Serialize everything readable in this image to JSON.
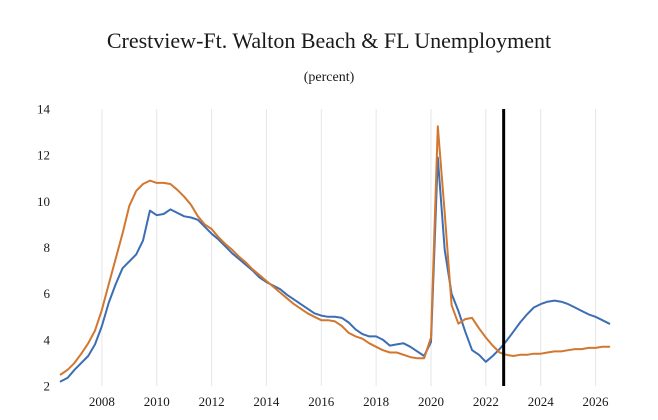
{
  "chart_data": {
    "type": "line",
    "title": "Crestview-Ft. Walton Beach & FL Unemployment",
    "subtitle": "(percent)",
    "xlabel": "",
    "ylabel": "",
    "xlim": [
      2006.4,
      2026.6
    ],
    "ylim": [
      2,
      14
    ],
    "y_ticks": [
      2,
      4,
      6,
      8,
      10,
      12,
      14
    ],
    "x_ticks": [
      2008,
      2010,
      2012,
      2014,
      2016,
      2018,
      2020,
      2022,
      2024,
      2026
    ],
    "grid": "vertical",
    "forecast_marker_x": 2022.65,
    "series": [
      {
        "name": "Crestview-Ft. Walton Beach",
        "color": "#3b6eb4",
        "x": [
          2006.5,
          2006.75,
          2007.0,
          2007.25,
          2007.5,
          2007.75,
          2008.0,
          2008.25,
          2008.5,
          2008.75,
          2009.0,
          2009.25,
          2009.5,
          2009.75,
          2010.0,
          2010.25,
          2010.5,
          2010.75,
          2011.0,
          2011.25,
          2011.5,
          2011.75,
          2012.0,
          2012.25,
          2012.5,
          2012.75,
          2013.0,
          2013.25,
          2013.5,
          2013.75,
          2014.0,
          2014.25,
          2014.5,
          2014.75,
          2015.0,
          2015.25,
          2015.5,
          2015.75,
          2016.0,
          2016.25,
          2016.5,
          2016.75,
          2017.0,
          2017.25,
          2017.5,
          2017.75,
          2018.0,
          2018.25,
          2018.5,
          2018.75,
          2019.0,
          2019.25,
          2019.5,
          2019.75,
          2020.0,
          2020.25,
          2020.5,
          2020.75,
          2021.0,
          2021.25,
          2021.5,
          2021.75,
          2022.0,
          2022.25,
          2022.5,
          2022.75,
          2023.0,
          2023.25,
          2023.5,
          2023.75,
          2024.0,
          2024.25,
          2024.5,
          2024.75,
          2025.0,
          2025.25,
          2025.5,
          2025.75,
          2026.0,
          2026.25,
          2026.5
        ],
        "values": [
          2.2,
          2.35,
          2.7,
          3.0,
          3.3,
          3.8,
          4.6,
          5.6,
          6.4,
          7.1,
          7.4,
          7.7,
          8.3,
          9.6,
          9.4,
          9.45,
          9.65,
          9.5,
          9.35,
          9.3,
          9.2,
          8.9,
          8.6,
          8.35,
          8.05,
          7.75,
          7.5,
          7.25,
          7.0,
          6.7,
          6.5,
          6.35,
          6.2,
          5.95,
          5.75,
          5.55,
          5.35,
          5.15,
          5.05,
          5.0,
          5.0,
          4.95,
          4.75,
          4.45,
          4.25,
          4.15,
          4.15,
          4.0,
          3.75,
          3.8,
          3.85,
          3.7,
          3.5,
          3.3,
          3.9,
          11.9,
          7.9,
          6.0,
          5.25,
          4.35,
          3.55,
          3.35,
          3.05,
          3.3,
          3.6,
          3.95,
          4.35,
          4.75,
          5.1,
          5.4,
          5.55,
          5.65,
          5.7,
          5.65,
          5.55,
          5.4,
          5.25,
          5.1,
          5.0,
          4.85,
          4.7
        ]
      },
      {
        "name": "FL",
        "color": "#d2772f",
        "x": [
          2006.5,
          2006.75,
          2007.0,
          2007.25,
          2007.5,
          2007.75,
          2008.0,
          2008.25,
          2008.5,
          2008.75,
          2009.0,
          2009.25,
          2009.5,
          2009.75,
          2010.0,
          2010.25,
          2010.5,
          2010.75,
          2011.0,
          2011.25,
          2011.5,
          2011.75,
          2012.0,
          2012.25,
          2012.5,
          2012.75,
          2013.0,
          2013.25,
          2013.5,
          2013.75,
          2014.0,
          2014.25,
          2014.5,
          2014.75,
          2015.0,
          2015.25,
          2015.5,
          2015.75,
          2016.0,
          2016.25,
          2016.5,
          2016.75,
          2017.0,
          2017.25,
          2017.5,
          2017.75,
          2018.0,
          2018.25,
          2018.5,
          2018.75,
          2019.0,
          2019.25,
          2019.5,
          2019.75,
          2020.0,
          2020.25,
          2020.5,
          2020.75,
          2021.0,
          2021.25,
          2021.5,
          2021.75,
          2022.0,
          2022.25,
          2022.5,
          2022.75,
          2023.0,
          2023.25,
          2023.5,
          2023.75,
          2024.0,
          2024.25,
          2024.5,
          2024.75,
          2025.0,
          2025.25,
          2025.5,
          2025.75,
          2026.0,
          2026.25,
          2026.5
        ],
        "values": [
          2.5,
          2.7,
          3.0,
          3.4,
          3.85,
          4.4,
          5.3,
          6.4,
          7.5,
          8.6,
          9.8,
          10.45,
          10.75,
          10.9,
          10.8,
          10.8,
          10.75,
          10.5,
          10.2,
          9.85,
          9.35,
          9.0,
          8.8,
          8.45,
          8.15,
          7.9,
          7.6,
          7.35,
          7.05,
          6.8,
          6.55,
          6.3,
          6.05,
          5.8,
          5.55,
          5.35,
          5.15,
          5.0,
          4.85,
          4.85,
          4.8,
          4.6,
          4.3,
          4.15,
          4.05,
          3.85,
          3.7,
          3.55,
          3.45,
          3.45,
          3.35,
          3.25,
          3.2,
          3.2,
          4.1,
          13.25,
          9.5,
          5.5,
          4.7,
          4.9,
          4.95,
          4.5,
          4.1,
          3.75,
          3.45,
          3.35,
          3.3,
          3.35,
          3.35,
          3.4,
          3.4,
          3.45,
          3.5,
          3.5,
          3.55,
          3.6,
          3.6,
          3.65,
          3.65,
          3.7,
          3.7
        ]
      }
    ]
  }
}
